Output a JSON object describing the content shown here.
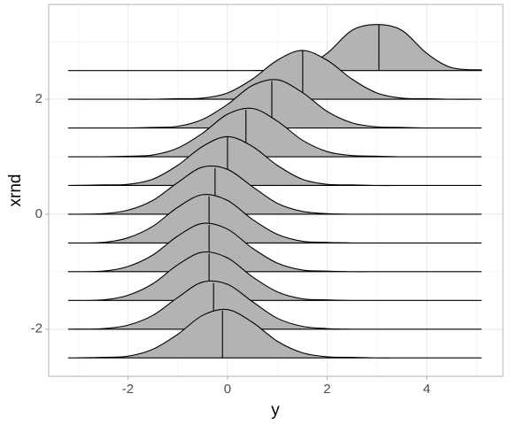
{
  "chart_data": {
    "type": "ridgeline",
    "x_label": "y",
    "y_label": "xrnd",
    "xlim": [
      -3.59,
      5.53
    ],
    "ylim": [
      -2.82,
      3.65
    ],
    "xticks": [
      -2,
      0,
      2,
      4
    ],
    "yticks": [
      -2,
      0,
      2
    ],
    "x_minor_breaks": [
      -3,
      -1,
      1,
      3,
      5
    ],
    "y_minor_breaks": [
      -1,
      1,
      3
    ],
    "grid": true,
    "fill_color": "#b3b3b3",
    "line_color": "#000000",
    "x": [
      -3.2,
      -2.5,
      -2,
      -1.5,
      -1,
      -0.5,
      0,
      0.5,
      1,
      1.5,
      2,
      2.5,
      3,
      3.5,
      4,
      4.5,
      5.1
    ],
    "series": [
      {
        "y": -2.5,
        "median": -0.1,
        "values": [
          0,
          0.01,
          0.03,
          0.15,
          0.41,
          0.74,
          0.84,
          0.62,
          0.29,
          0.09,
          0.02,
          0.01,
          0,
          0,
          0,
          0,
          0
        ]
      },
      {
        "y": -2,
        "median": -0.28,
        "values": [
          0,
          0.01,
          0.07,
          0.24,
          0.55,
          0.82,
          0.78,
          0.48,
          0.19,
          0.05,
          0.01,
          0,
          0,
          0,
          0,
          0,
          0
        ]
      },
      {
        "y": -1.5,
        "median": -0.37,
        "values": [
          0,
          0.01,
          0.09,
          0.29,
          0.62,
          0.84,
          0.74,
          0.41,
          0.15,
          0.03,
          0.01,
          0,
          0,
          0,
          0,
          0,
          0
        ]
      },
      {
        "y": -1,
        "median": -0.37,
        "values": [
          0,
          0.01,
          0.09,
          0.29,
          0.62,
          0.84,
          0.74,
          0.41,
          0.15,
          0.03,
          0.01,
          0,
          0,
          0,
          0,
          0,
          0
        ]
      },
      {
        "y": -0.5,
        "median": -0.37,
        "values": [
          0,
          0.01,
          0.09,
          0.29,
          0.62,
          0.84,
          0.74,
          0.41,
          0.15,
          0.03,
          0.01,
          0,
          0,
          0,
          0,
          0,
          0
        ]
      },
      {
        "y": 0,
        "median": -0.25,
        "values": [
          0,
          0.01,
          0.07,
          0.24,
          0.55,
          0.82,
          0.78,
          0.48,
          0.19,
          0.05,
          0.01,
          0,
          0,
          0,
          0,
          0,
          0
        ]
      },
      {
        "y": 0.5,
        "median": 0,
        "values": [
          0,
          0.01,
          0.02,
          0.11,
          0.35,
          0.68,
          0.85,
          0.68,
          0.35,
          0.11,
          0.02,
          0.01,
          0,
          0,
          0,
          0,
          0
        ]
      },
      {
        "y": 1,
        "median": 0.37,
        "values": [
          0,
          0,
          0.01,
          0.03,
          0.15,
          0.41,
          0.74,
          0.84,
          0.62,
          0.29,
          0.09,
          0.02,
          0.01,
          0,
          0,
          0,
          0
        ]
      },
      {
        "y": 1.5,
        "median": 0.89,
        "values": [
          0,
          0,
          0,
          0.01,
          0.03,
          0.15,
          0.41,
          0.74,
          0.84,
          0.62,
          0.29,
          0.09,
          0.02,
          0.01,
          0,
          0,
          0
        ]
      },
      {
        "y": 2,
        "median": 1.51,
        "values": [
          0,
          0,
          0,
          0,
          0.01,
          0.02,
          0.11,
          0.35,
          0.68,
          0.85,
          0.68,
          0.35,
          0.11,
          0.02,
          0.01,
          0,
          0
        ]
      },
      {
        "y": 2.5,
        "median": 3.04,
        "values": [
          0,
          0,
          0,
          0,
          0,
          0,
          0,
          0,
          0.01,
          0.05,
          0.3,
          0.7,
          0.8,
          0.7,
          0.3,
          0.05,
          0.01
        ]
      }
    ]
  }
}
